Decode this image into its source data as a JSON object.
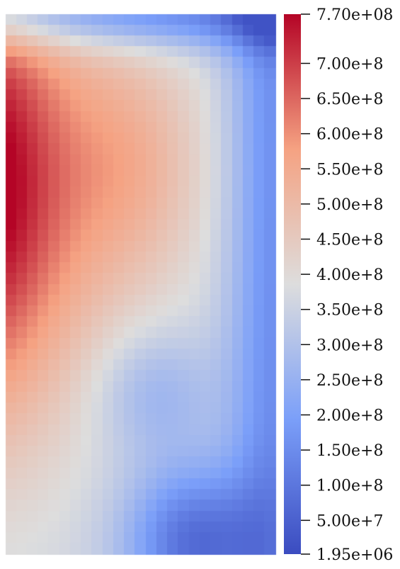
{
  "chart_data": {
    "type": "heatmap",
    "colormap": "cool-to-warm",
    "colors": {
      "low": "#3b4cc0",
      "mid": "#dddddd",
      "high": "#b40426"
    },
    "range": [
      1950000,
      770000000
    ],
    "colorbar": {
      "orientation": "vertical",
      "position": "right",
      "tick_labels": [
        {
          "value": 770000000,
          "label": "7.70e+08"
        },
        {
          "value": 700000000,
          "label": "7.00e+8"
        },
        {
          "value": 650000000,
          "label": "6.50e+8"
        },
        {
          "value": 600000000,
          "label": "6.00e+8"
        },
        {
          "value": 550000000,
          "label": "5.50e+8"
        },
        {
          "value": 500000000,
          "label": "5.00e+8"
        },
        {
          "value": 450000000,
          "label": "4.50e+8"
        },
        {
          "value": 400000000,
          "label": "4.00e+8"
        },
        {
          "value": 350000000,
          "label": "3.50e+8"
        },
        {
          "value": 300000000,
          "label": "3.00e+8"
        },
        {
          "value": 250000000,
          "label": "2.50e+8"
        },
        {
          "value": 200000000,
          "label": "2.00e+8"
        },
        {
          "value": 150000000,
          "label": "1.50e+8"
        },
        {
          "value": 100000000,
          "label": "1.00e+8"
        },
        {
          "value": 50000000,
          "label": "5.00e+7"
        },
        {
          "value": 1950000,
          "label": "1.95e+06"
        }
      ]
    },
    "title": "",
    "xlabel": "",
    "ylabel": ""
  }
}
